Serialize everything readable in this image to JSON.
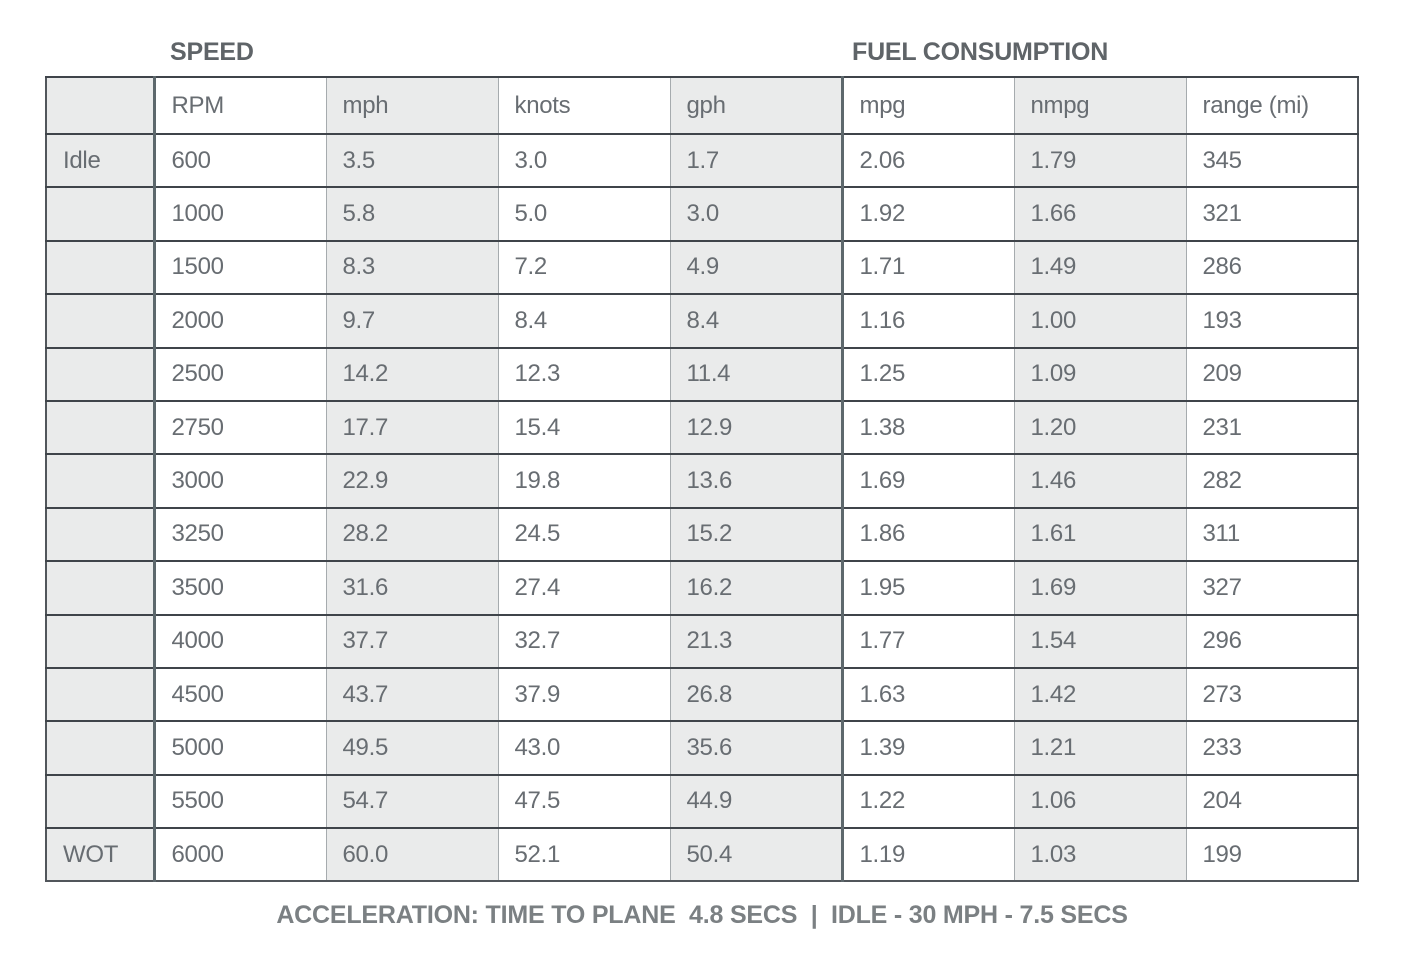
{
  "section_titles": {
    "speed": "SPEED",
    "fuel": "FUEL CONSUMPTION"
  },
  "chart_data": {
    "type": "table",
    "columns": [
      "",
      "RPM",
      "mph",
      "knots",
      "gph",
      "mpg",
      "nmpg",
      "range (mi)"
    ],
    "rows": [
      [
        "Idle",
        "600",
        "3.5",
        "3.0",
        "1.7",
        "2.06",
        "1.79",
        "345"
      ],
      [
        "",
        "1000",
        "5.8",
        "5.0",
        "3.0",
        "1.92",
        "1.66",
        "321"
      ],
      [
        "",
        "1500",
        "8.3",
        "7.2",
        "4.9",
        "1.71",
        "1.49",
        "286"
      ],
      [
        "",
        "2000",
        "9.7",
        "8.4",
        "8.4",
        "1.16",
        "1.00",
        "193"
      ],
      [
        "",
        "2500",
        "14.2",
        "12.3",
        "11.4",
        "1.25",
        "1.09",
        "209"
      ],
      [
        "",
        "2750",
        "17.7",
        "15.4",
        "12.9",
        "1.38",
        "1.20",
        "231"
      ],
      [
        "",
        "3000",
        "22.9",
        "19.8",
        "13.6",
        "1.69",
        "1.46",
        "282"
      ],
      [
        "",
        "3250",
        "28.2",
        "24.5",
        "15.2",
        "1.86",
        "1.61",
        "311"
      ],
      [
        "",
        "3500",
        "31.6",
        "27.4",
        "16.2",
        "1.95",
        "1.69",
        "327"
      ],
      [
        "",
        "4000",
        "37.7",
        "32.7",
        "21.3",
        "1.77",
        "1.54",
        "296"
      ],
      [
        "",
        "4500",
        "43.7",
        "37.9",
        "26.8",
        "1.63",
        "1.42",
        "273"
      ],
      [
        "",
        "5000",
        "49.5",
        "43.0",
        "35.6",
        "1.39",
        "1.21",
        "233"
      ],
      [
        "",
        "5500",
        "54.7",
        "47.5",
        "44.9",
        "1.22",
        "1.06",
        "204"
      ],
      [
        "WOT",
        "6000",
        "60.0",
        "52.1",
        "50.4",
        "1.19",
        "1.03",
        "199"
      ]
    ],
    "section_groups": {
      "speed_columns": [
        "RPM",
        "mph",
        "knots",
        "gph"
      ],
      "fuel_columns": [
        "mpg",
        "nmpg",
        "range (mi)"
      ]
    },
    "title": "SPEED / FUEL CONSUMPTION performance table",
    "legend_position": "none",
    "grid": "on"
  },
  "footer": {
    "caption": "ACCELERATION: TIME TO PLANE  4.8 SECS  |  IDLE - 30 MPH - 7.5 SECS"
  },
  "colors": {
    "cell_shade": "#eaebeb",
    "cell_text": "#686d72",
    "border_horizontal": "#3f444a",
    "border_vertical_light": "#a6abae",
    "border_section_thick": "#5d686c",
    "title_text": "#5f6468",
    "caption_text": "#7b8083"
  }
}
